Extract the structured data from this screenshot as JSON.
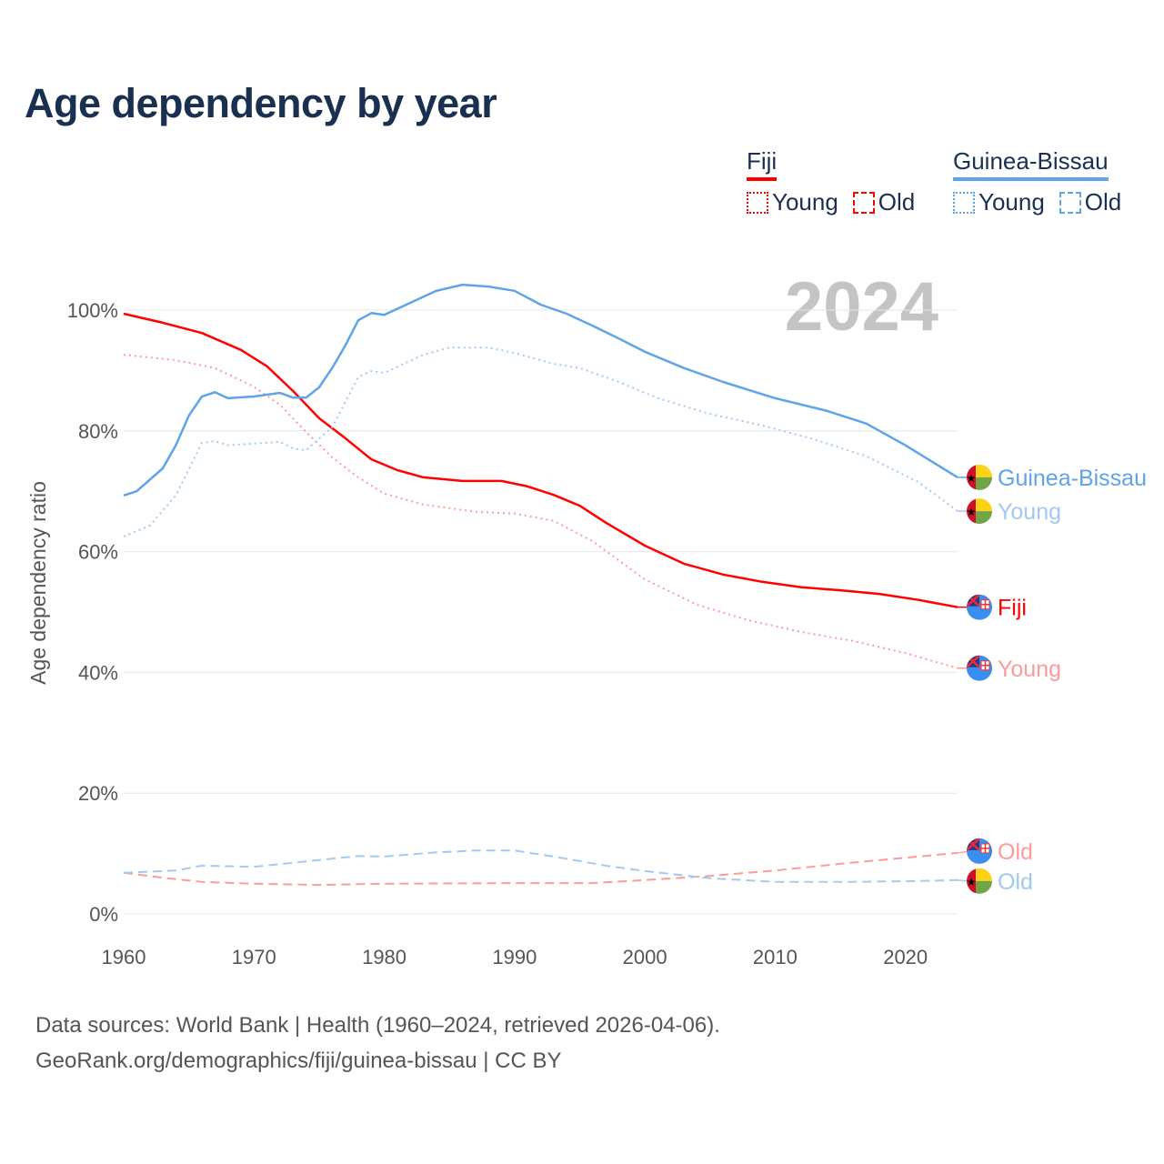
{
  "title": "Age dependency by year",
  "year_watermark": "2024",
  "legend": {
    "fiji": {
      "label": "Fiji",
      "color": "#ff0000",
      "light": "#ff9a9a",
      "young": "Young",
      "old": "Old"
    },
    "gb": {
      "label": "Guinea-Bissau",
      "color": "#5fa3e8",
      "light": "#a2c9f0",
      "young": "Young",
      "old": "Old"
    }
  },
  "footer": {
    "line1": "Data sources: World Bank | Health (1960–2024, retrieved 2026-04-06).",
    "line2": "GeoRank.org/demographics/fiji/guinea-bissau | CC BY"
  },
  "chart_data": {
    "type": "line",
    "title": "Age dependency by year",
    "xlabel": "",
    "ylabel": "Age dependency ratio",
    "xlim": [
      1960,
      2024
    ],
    "ylim": [
      0,
      100
    ],
    "x_ticks": [
      "1960",
      "1970",
      "1980",
      "1990",
      "2000",
      "2010",
      "2020"
    ],
    "y_ticks": [
      "0%",
      "20%",
      "40%",
      "60%",
      "80%",
      "100%"
    ],
    "grid": true,
    "series": [
      {
        "name": "Fiji",
        "end_label": "Fiji",
        "country": "fiji",
        "style": "solid",
        "points": [
          [
            1960,
            99.4
          ],
          [
            1963,
            97.9
          ],
          [
            1966,
            96.2
          ],
          [
            1969,
            93.4
          ],
          [
            1971,
            90.7
          ],
          [
            1973,
            86.6
          ],
          [
            1975,
            82.1
          ],
          [
            1977,
            78.8
          ],
          [
            1979,
            75.3
          ],
          [
            1981,
            73.5
          ],
          [
            1983,
            72.3
          ],
          [
            1986,
            71.7
          ],
          [
            1989,
            71.7
          ],
          [
            1991,
            70.8
          ],
          [
            1993,
            69.4
          ],
          [
            1995,
            67.6
          ],
          [
            1997,
            64.8
          ],
          [
            2000,
            61.0
          ],
          [
            2003,
            58.0
          ],
          [
            2006,
            56.2
          ],
          [
            2009,
            55.0
          ],
          [
            2012,
            54.1
          ],
          [
            2015,
            53.6
          ],
          [
            2018,
            53.0
          ],
          [
            2021,
            52.0
          ],
          [
            2024,
            50.8
          ]
        ]
      },
      {
        "name": "Fiji Young",
        "end_label": "Young",
        "country": "fiji",
        "style": "dotted",
        "points": [
          [
            1960,
            92.6
          ],
          [
            1964,
            91.7
          ],
          [
            1967,
            90.4
          ],
          [
            1970,
            87.3
          ],
          [
            1972,
            84.3
          ],
          [
            1974,
            79.8
          ],
          [
            1976,
            75.6
          ],
          [
            1978,
            72.3
          ],
          [
            1980,
            69.6
          ],
          [
            1983,
            67.8
          ],
          [
            1987,
            66.6
          ],
          [
            1990,
            66.3
          ],
          [
            1993,
            65.1
          ],
          [
            1996,
            61.7
          ],
          [
            2000,
            55.4
          ],
          [
            2004,
            51.2
          ],
          [
            2008,
            48.6
          ],
          [
            2012,
            46.7
          ],
          [
            2016,
            45.2
          ],
          [
            2020,
            43.2
          ],
          [
            2024,
            40.7
          ]
        ]
      },
      {
        "name": "Fiji Old",
        "end_label": "Old",
        "country": "fiji",
        "style": "dashed",
        "points": [
          [
            1960,
            6.8
          ],
          [
            1963,
            6.0
          ],
          [
            1966,
            5.3
          ],
          [
            1970,
            5.0
          ],
          [
            1975,
            4.8
          ],
          [
            1980,
            5.0
          ],
          [
            1990,
            5.1
          ],
          [
            1996,
            5.1
          ],
          [
            2000,
            5.6
          ],
          [
            2005,
            6.3
          ],
          [
            2010,
            7.2
          ],
          [
            2015,
            8.3
          ],
          [
            2020,
            9.3
          ],
          [
            2024,
            10.1
          ]
        ]
      },
      {
        "name": "Guinea-Bissau",
        "end_label": "Guinea-Bissau",
        "country": "gb",
        "style": "solid",
        "points": [
          [
            1960,
            69.3
          ],
          [
            1961,
            70.0
          ],
          [
            1963,
            73.8
          ],
          [
            1964,
            77.6
          ],
          [
            1965,
            82.5
          ],
          [
            1966,
            85.7
          ],
          [
            1967,
            86.4
          ],
          [
            1968,
            85.4
          ],
          [
            1970,
            85.7
          ],
          [
            1972,
            86.3
          ],
          [
            1973,
            85.5
          ],
          [
            1974,
            85.5
          ],
          [
            1975,
            87.2
          ],
          [
            1976,
            90.4
          ],
          [
            1977,
            94.1
          ],
          [
            1978,
            98.3
          ],
          [
            1979,
            99.5
          ],
          [
            1980,
            99.2
          ],
          [
            1982,
            101.2
          ],
          [
            1984,
            103.2
          ],
          [
            1986,
            104.2
          ],
          [
            1988,
            103.9
          ],
          [
            1990,
            103.2
          ],
          [
            1992,
            100.9
          ],
          [
            1994,
            99.4
          ],
          [
            1996,
            97.4
          ],
          [
            1998,
            95.3
          ],
          [
            2000,
            93.1
          ],
          [
            2003,
            90.4
          ],
          [
            2006,
            88.1
          ],
          [
            2010,
            85.4
          ],
          [
            2014,
            83.3
          ],
          [
            2017,
            81.2
          ],
          [
            2020,
            77.6
          ],
          [
            2024,
            72.3
          ]
        ]
      },
      {
        "name": "Guinea-Bissau Young",
        "end_label": "Young",
        "country": "gb",
        "style": "dotted",
        "points": [
          [
            1960,
            62.5
          ],
          [
            1962,
            64.3
          ],
          [
            1964,
            69.3
          ],
          [
            1966,
            78.0
          ],
          [
            1967,
            78.3
          ],
          [
            1968,
            77.6
          ],
          [
            1972,
            78.2
          ],
          [
            1973,
            77.1
          ],
          [
            1974,
            76.8
          ],
          [
            1976,
            80.6
          ],
          [
            1978,
            88.9
          ],
          [
            1979,
            89.9
          ],
          [
            1980,
            89.6
          ],
          [
            1983,
            92.6
          ],
          [
            1985,
            93.8
          ],
          [
            1988,
            93.8
          ],
          [
            1990,
            92.9
          ],
          [
            1993,
            91.1
          ],
          [
            1995,
            90.4
          ],
          [
            1998,
            88.1
          ],
          [
            2001,
            85.4
          ],
          [
            2005,
            82.8
          ],
          [
            2009,
            80.9
          ],
          [
            2013,
            78.6
          ],
          [
            2017,
            75.8
          ],
          [
            2021,
            71.5
          ],
          [
            2024,
            66.7
          ]
        ]
      },
      {
        "name": "Guinea-Bissau Old",
        "end_label": "Old",
        "country": "gb",
        "style": "dashed",
        "points": [
          [
            1960,
            6.8
          ],
          [
            1964,
            7.2
          ],
          [
            1966,
            8.0
          ],
          [
            1970,
            7.8
          ],
          [
            1974,
            8.7
          ],
          [
            1978,
            9.6
          ],
          [
            1980,
            9.5
          ],
          [
            1984,
            10.2
          ],
          [
            1987,
            10.5
          ],
          [
            1990,
            10.5
          ],
          [
            1993,
            9.5
          ],
          [
            1997,
            8.0
          ],
          [
            2000,
            7.1
          ],
          [
            2005,
            5.9
          ],
          [
            2010,
            5.3
          ],
          [
            2015,
            5.3
          ],
          [
            2020,
            5.4
          ],
          [
            2024,
            5.6
          ]
        ]
      }
    ]
  }
}
